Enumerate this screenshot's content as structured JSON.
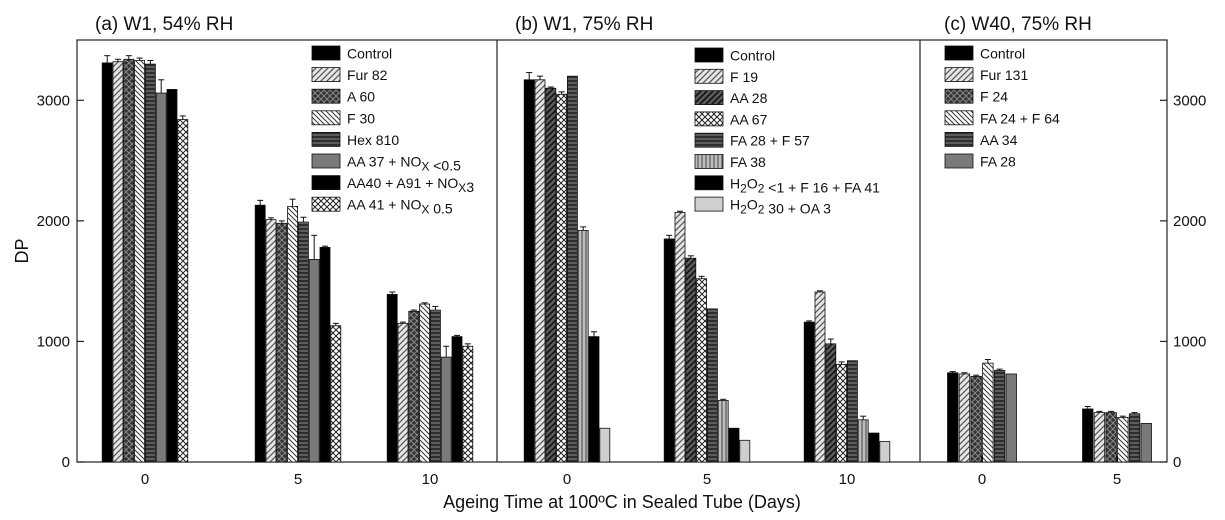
{
  "chart_data": [
    {
      "type": "bar",
      "title": "(a) W1, 54% RH",
      "categories": [
        "0",
        "5",
        "10"
      ],
      "series": [
        {
          "name": "Control",
          "values": [
            3310,
            2130,
            1390
          ],
          "errors": [
            60,
            40,
            20
          ],
          "color": "#000000",
          "pattern": "solid"
        },
        {
          "name": "Fur 82",
          "values": [
            3320,
            2010,
            1150
          ],
          "errors": [
            20,
            15,
            10
          ],
          "color": "#d8d8d8",
          "pattern": "diag"
        },
        {
          "name": "A 60",
          "values": [
            3340,
            1980,
            1250
          ],
          "errors": [
            30,
            20,
            10
          ],
          "color": "#444444",
          "pattern": "cross"
        },
        {
          "name": "F 30",
          "values": [
            3330,
            2120,
            1310
          ],
          "errors": [
            20,
            60,
            10
          ],
          "color": "#ffffff",
          "pattern": "diagthin"
        },
        {
          "name": "Hex 810",
          "values": [
            3300,
            1990,
            1260
          ],
          "errors": [
            30,
            40,
            30
          ],
          "color": "#3a3a3a",
          "pattern": "hlines"
        },
        {
          "name": "AA 37 + NOx <0.5",
          "values": [
            3060,
            1680,
            870
          ],
          "errors": [
            110,
            200,
            90
          ],
          "color": "#7a7a7a",
          "pattern": "solid"
        },
        {
          "name": "AA40 + A91 + NOx3",
          "values": [
            3090,
            1780,
            1040
          ],
          "errors": [
            0,
            10,
            10
          ],
          "color": "#000000",
          "pattern": "solid"
        },
        {
          "name": "AA 41 + NOx 0.5",
          "values": [
            2840,
            1130,
            960
          ],
          "errors": [
            30,
            20,
            20
          ],
          "color": "#ffffff",
          "pattern": "checker"
        }
      ]
    },
    {
      "type": "bar",
      "title": "(b) W1, 75% RH",
      "categories": [
        "0",
        "5",
        "10"
      ],
      "series": [
        {
          "name": "Control",
          "values": [
            3170,
            1850,
            1160
          ],
          "errors": [
            60,
            30,
            10
          ],
          "color": "#000000",
          "pattern": "solid"
        },
        {
          "name": "F 19",
          "values": [
            3170,
            2070,
            1410
          ],
          "errors": [
            30,
            10,
            10
          ],
          "color": "#d8d8d8",
          "pattern": "diag"
        },
        {
          "name": "AA 28",
          "values": [
            3100,
            1690,
            980
          ],
          "errors": [
            10,
            20,
            40
          ],
          "color": "#444444",
          "pattern": "diagdark"
        },
        {
          "name": "AA 67",
          "values": [
            3050,
            1520,
            810
          ],
          "errors": [
            20,
            20,
            20
          ],
          "color": "#ffffff",
          "pattern": "checker"
        },
        {
          "name": "FA 28 + F 57",
          "values": [
            3200,
            1270,
            840
          ],
          "errors": [
            0,
            0,
            0
          ],
          "color": "#3a3a3a",
          "pattern": "hlines"
        },
        {
          "name": "FA 38",
          "values": [
            1920,
            510,
            350
          ],
          "errors": [
            30,
            10,
            30
          ],
          "color": "#9a9a9a",
          "pattern": "vlines"
        },
        {
          "name": "H2O2 <1 + F 16 + FA 41",
          "values": [
            1040,
            280,
            240
          ],
          "errors": [
            40,
            0,
            0
          ],
          "color": "#000000",
          "pattern": "solid"
        },
        {
          "name": "H2O2 30 + OA 3",
          "values": [
            280,
            180,
            170
          ],
          "errors": [
            0,
            0,
            0
          ],
          "color": "#cfcfcf",
          "pattern": "solid"
        }
      ]
    },
    {
      "type": "bar",
      "title": "(c) W40, 75% RH",
      "categories": [
        "0",
        "5"
      ],
      "series": [
        {
          "name": "Control",
          "values": [
            740,
            440
          ],
          "errors": [
            10,
            20
          ],
          "color": "#000000",
          "pattern": "solid"
        },
        {
          "name": "Fur 131",
          "values": [
            730,
            410
          ],
          "errors": [
            10,
            10
          ],
          "color": "#d8d8d8",
          "pattern": "diag"
        },
        {
          "name": "F 24",
          "values": [
            710,
            410
          ],
          "errors": [
            10,
            10
          ],
          "color": "#444444",
          "pattern": "cross"
        },
        {
          "name": "FA 24 + F 64",
          "values": [
            820,
            370
          ],
          "errors": [
            30,
            10
          ],
          "color": "#ffffff",
          "pattern": "diagthin"
        },
        {
          "name": "AA 34",
          "values": [
            760,
            400
          ],
          "errors": [
            10,
            10
          ],
          "color": "#3a3a3a",
          "pattern": "hlines"
        },
        {
          "name": "FA 28",
          "values": [
            730,
            320
          ],
          "errors": [
            0,
            0
          ],
          "color": "#7a7a7a",
          "pattern": "solid"
        }
      ]
    }
  ],
  "axes": {
    "ylabel": "DP",
    "xlabel": "Ageing Time at 100ºC in Sealed Tube (Days)",
    "ylim": [
      0,
      3500
    ],
    "yticks": [
      "0",
      "1000",
      "2000",
      "3000"
    ]
  }
}
